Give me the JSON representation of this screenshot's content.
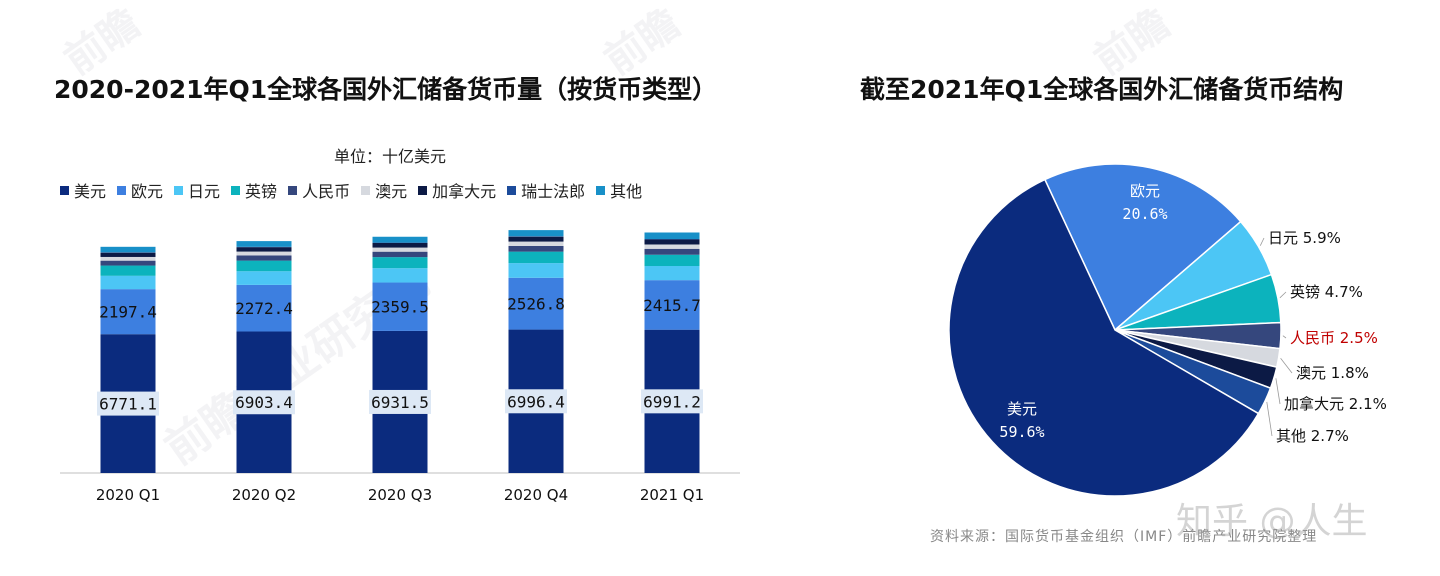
{
  "titles": {
    "bar": "2020-2021年Q1全球各国外汇储备货币量（按货币类型）",
    "pie": "截至2021年Q1全球各国外汇储备货币结构"
  },
  "unit": "单位：十亿美元",
  "source": "资料来源：国际货币基金组织（IMF）前瞻产业研究院整理",
  "watermark": "知乎 @人生",
  "colors": {
    "usd": "#0b2b7e",
    "eur": "#3d7fe0",
    "jpy": "#4cc6f5",
    "gbp": "#0cb3bd",
    "cny": "#35477d",
    "aud": "#d6d9df",
    "cad": "#0c1a45",
    "chf": "#1c4b9b",
    "other": "#1890c8",
    "rmb_label": "#c00000"
  },
  "chart_data": [
    {
      "type": "bar",
      "stacked": true,
      "categories": [
        "2020 Q1",
        "2020 Q2",
        "2020 Q3",
        "2020 Q4",
        "2021 Q1"
      ],
      "series": [
        {
          "name": "美元",
          "key": "usd",
          "values": [
            6771.1,
            6903.4,
            6931.5,
            6996.4,
            6991.2
          ],
          "labeled": true
        },
        {
          "name": "欧元",
          "key": "eur",
          "values": [
            2197.4,
            2272.4,
            2359.5,
            2526.8,
            2415.7
          ],
          "labeled": true
        },
        {
          "name": "日元",
          "key": "jpy",
          "values": [
            650,
            665,
            700,
            715,
            690
          ]
        },
        {
          "name": "英镑",
          "key": "gbp",
          "values": [
            500,
            520,
            540,
            560,
            550
          ]
        },
        {
          "name": "人民币",
          "key": "cny",
          "values": [
            240,
            250,
            265,
            275,
            290
          ]
        },
        {
          "name": "澳元",
          "key": "aud",
          "values": [
            180,
            190,
            200,
            215,
            210
          ]
        },
        {
          "name": "加拿大元",
          "key": "cad",
          "values": [
            210,
            215,
            225,
            240,
            245
          ]
        },
        {
          "name": "瑞士法郎",
          "key": "chf",
          "values": [
            15,
            16,
            18,
            20,
            20
          ]
        },
        {
          "name": "其他",
          "key": "other",
          "values": [
            270,
            280,
            285,
            300,
            320
          ]
        }
      ],
      "grid": false,
      "legend": "top"
    },
    {
      "type": "pie",
      "slices": [
        {
          "name": "美元",
          "key": "usd",
          "value": 59.6,
          "label": "59.6%"
        },
        {
          "name": "欧元",
          "key": "eur",
          "value": 20.6,
          "label": "20.6%"
        },
        {
          "name": "日元",
          "key": "jpy",
          "value": 5.9,
          "label": "5.9%"
        },
        {
          "name": "英镑",
          "key": "gbp",
          "value": 4.7,
          "label": "4.7%"
        },
        {
          "name": "人民币",
          "key": "cny",
          "value": 2.5,
          "label": "2.5%"
        },
        {
          "name": "澳元",
          "key": "aud",
          "value": 1.8,
          "label": "1.8%"
        },
        {
          "name": "加拿大元",
          "key": "cad",
          "value": 2.1,
          "label": "2.1%"
        },
        {
          "name": "其他",
          "key": "chf",
          "value": 2.7,
          "label": "2.7%"
        }
      ]
    }
  ]
}
